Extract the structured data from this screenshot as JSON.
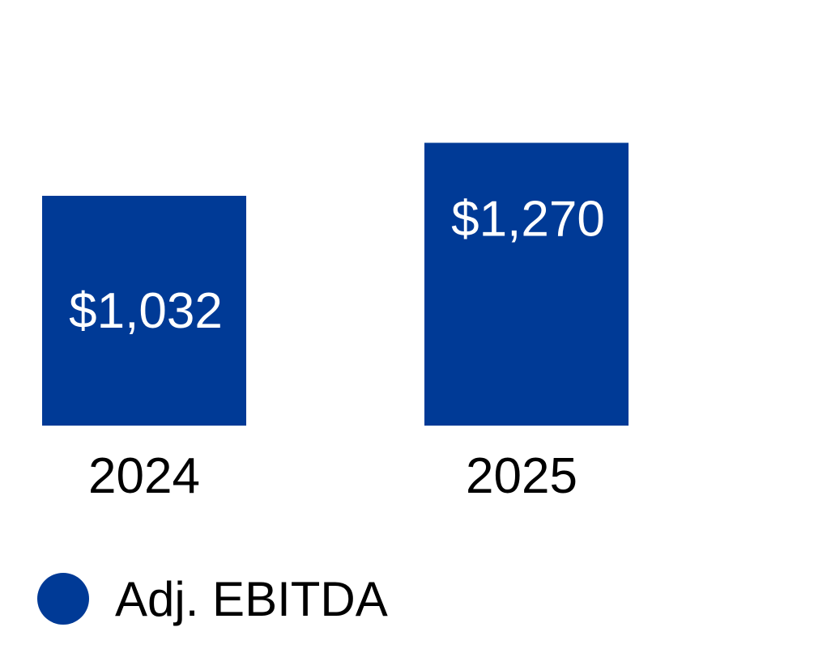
{
  "chart_data": {
    "type": "bar",
    "categories": [
      "2024",
      "2025"
    ],
    "series": [
      {
        "name": "Adj. EBITDA",
        "values": [
          1032,
          1270
        ],
        "labels": [
          "$1,032",
          "$1,270"
        ],
        "color": "#003A96"
      }
    ],
    "title": "",
    "xlabel": "",
    "ylabel": "",
    "ylim": [
      0,
      1600
    ],
    "grid": false,
    "legend_position": "bottom-left"
  }
}
